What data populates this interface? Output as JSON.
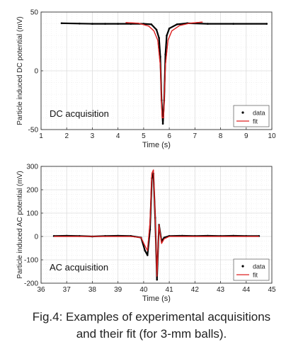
{
  "caption": {
    "line1": "Fig.4: Examples of experimental acquisitions",
    "line2": "and their fit (for 3-mm balls)."
  },
  "chart_data": [
    {
      "type": "line",
      "annotation": "DC acquisition",
      "xlabel": "Time (s)",
      "ylabel": "Particle induced DC potential (mV)",
      "xlim": [
        1,
        10
      ],
      "ylim": [
        -50,
        50
      ],
      "xticks": [
        1,
        2,
        3,
        4,
        5,
        6,
        7,
        8,
        9,
        10
      ],
      "yticks": [
        -50,
        0,
        50
      ],
      "grid": true,
      "legend_position": "bottom-right",
      "series": [
        {
          "name": "data",
          "style": "points",
          "color": "#000000",
          "x": [
            1.8,
            2.5,
            3.0,
            3.5,
            4.0,
            4.5,
            5.0,
            5.3,
            5.5,
            5.6,
            5.65,
            5.7,
            5.75,
            5.8,
            5.85,
            5.9,
            6.0,
            6.3,
            6.7,
            7.5,
            8.5,
            9.8
          ],
          "y": [
            40.5,
            40.2,
            40.0,
            40.0,
            40.0,
            40.0,
            40.0,
            39.5,
            35,
            28,
            12,
            -25,
            -45,
            -25,
            14,
            30,
            36,
            39.5,
            40.5,
            40.0,
            40.0,
            40.0
          ]
        },
        {
          "name": "fit",
          "style": "line",
          "color": "#dd2222",
          "x": [
            4.3,
            4.8,
            5.2,
            5.4,
            5.55,
            5.65,
            5.72,
            5.78,
            5.85,
            5.95,
            6.1,
            6.4,
            6.8,
            7.3
          ],
          "y": [
            41,
            40.5,
            38,
            34,
            26,
            5,
            -40,
            -40,
            5,
            26,
            34,
            38.5,
            40.5,
            41.5
          ]
        }
      ]
    },
    {
      "type": "line",
      "annotation": "AC acquisition",
      "xlabel": "Time (s)",
      "ylabel": "Particle induced AC potential (mV)",
      "xlim": [
        36,
        45
      ],
      "ylim": [
        -200,
        300
      ],
      "xticks": [
        36,
        37,
        38,
        39,
        40,
        41,
        42,
        43,
        44,
        45
      ],
      "yticks": [
        -200,
        -100,
        0,
        100,
        200,
        300
      ],
      "grid": true,
      "legend_position": "bottom-right",
      "series": [
        {
          "name": "data",
          "style": "points",
          "color": "#000000",
          "x": [
            36.5,
            37.0,
            37.5,
            38.0,
            38.5,
            39.0,
            39.5,
            39.9,
            40.05,
            40.15,
            40.25,
            40.32,
            40.38,
            40.45,
            40.52,
            40.6,
            40.7,
            40.8,
            41.0,
            41.5,
            42.0,
            42.5,
            43.0,
            43.5,
            44.0,
            44.5
          ],
          "y": [
            2,
            3,
            2,
            0,
            2,
            3,
            2,
            -5,
            -60,
            -80,
            30,
            250,
            270,
            80,
            -185,
            50,
            -20,
            -5,
            2,
            3,
            2,
            3,
            2,
            3,
            2,
            2
          ]
        },
        {
          "name": "fit",
          "style": "line",
          "color": "#dd2222",
          "x": [
            36.5,
            37.0,
            37.5,
            38.0,
            38.5,
            39.0,
            39.5,
            39.9,
            40.05,
            40.15,
            40.25,
            40.32,
            40.38,
            40.45,
            40.52,
            40.6,
            40.7,
            40.8,
            41.0,
            41.5,
            42.0,
            42.5,
            43.0,
            43.5,
            44.0,
            44.5
          ],
          "y": [
            0,
            0,
            0,
            0,
            0,
            0,
            0,
            -5,
            -40,
            -60,
            60,
            270,
            285,
            90,
            -170,
            50,
            -30,
            -10,
            0,
            0,
            0,
            0,
            0,
            0,
            0,
            0
          ]
        }
      ]
    }
  ]
}
